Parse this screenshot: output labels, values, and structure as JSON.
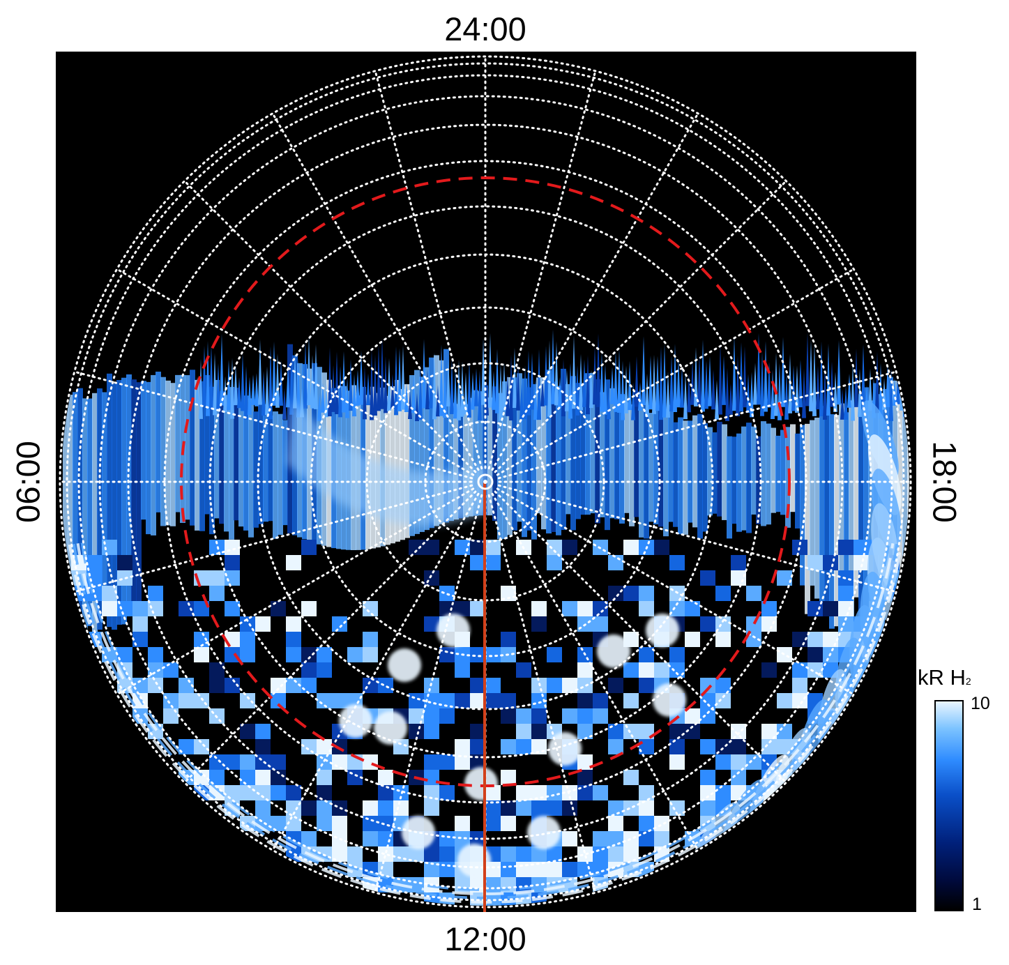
{
  "labels": {
    "top": "24:00",
    "bottom": "12:00",
    "left": "06:00",
    "right": "18:00"
  },
  "colorbar": {
    "title_main": "kR H",
    "title_subscript": "2",
    "max_label": "10",
    "min_label": "1"
  },
  "colors": {
    "background": "#000000",
    "grid": "#ffffff",
    "reference_oval": "#e31a1c",
    "noon_meridian": "#d2401a",
    "emission_dim": "#0a3fb0",
    "emission_mid": "#2f8cff",
    "emission_bright": "#eaf6ff"
  }
}
